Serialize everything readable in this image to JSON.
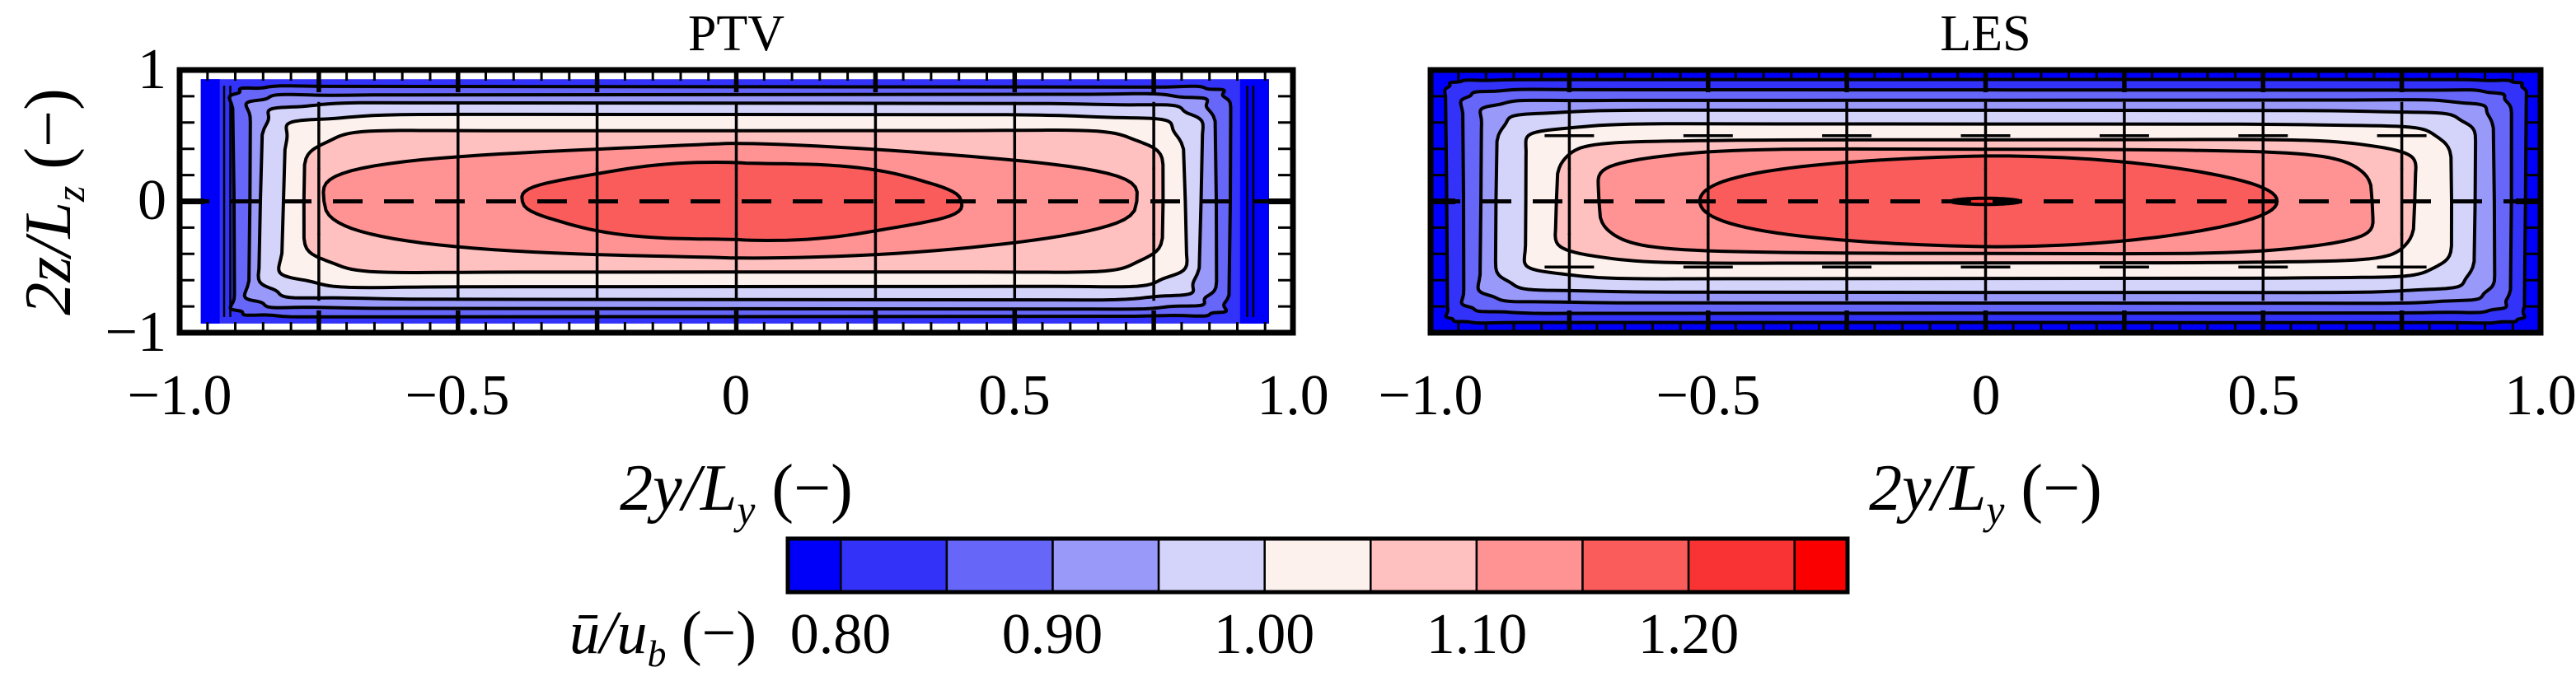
{
  "labels": {
    "xlabel": {
      "pre": "2y/L",
      "sub": "y",
      "post": " (−)"
    },
    "ylabel": {
      "pre": "2z/L",
      "sub": "z",
      "post": " (−)"
    },
    "cbar_label": {
      "pre": "ū/u",
      "sub": "b",
      "post": " (−)"
    }
  },
  "axes": {
    "x_tick_labels": [
      "−1.0",
      "−0.5",
      "0",
      "0.5",
      "1.0"
    ],
    "x_tick_values": [
      -1,
      -0.5,
      0,
      0.5,
      1
    ],
    "y_tick_labels": [
      "1",
      "0",
      "−1"
    ],
    "y_tick_values": [
      1,
      0,
      -1
    ],
    "x_minor_step": 0.05,
    "x_major_step": 0.25,
    "y_minor_step": 0.2
  },
  "colorbar": {
    "tick_labels": [
      "0.80",
      "0.90",
      "1.00",
      "1.10",
      "1.20"
    ],
    "tick_values": [
      0.8,
      0.9,
      1.0,
      1.1,
      1.2
    ],
    "vmin": 0.775,
    "vmax": 1.275,
    "boundaries": [
      0.775,
      0.8,
      0.85,
      0.9,
      0.95,
      1.0,
      1.05,
      1.1,
      1.15,
      1.2,
      1.25,
      1.275
    ],
    "colors": [
      "#0000FA",
      "#3232F8",
      "#6666F8",
      "#9999FA",
      "#D4D4FB",
      "#FDF1EE",
      "#FFC0C0",
      "#FF9393",
      "#FA5C5C",
      "#F93333",
      "#FA0000"
    ]
  },
  "chart_data": [
    {
      "type": "heatmap",
      "subtype": "filled-contour",
      "title": "PTV",
      "xlabel": "2y/Ly (−)",
      "ylabel": "2z/Lz (−)",
      "quantity": "ū/ub (−)",
      "xlim": [
        -1,
        1
      ],
      "ylim": [
        -1,
        1
      ],
      "levels": [
        0.775,
        0.8,
        0.85,
        0.9,
        0.95,
        1.0,
        1.05,
        1.1,
        1.15,
        1.2,
        1.25,
        1.275
      ],
      "grid": "dashed centerline z=0 plus cross markers",
      "center_dashed_line_z": 0,
      "marker_x": [
        -0.75,
        -0.5,
        -0.25,
        0,
        0.25,
        0.5,
        0.75
      ],
      "marker_z": [
        -0.5,
        0,
        0.5
      ],
      "plus_markers": false,
      "full_background": false,
      "data_region": {
        "x": [
          -0.962,
          0.957
        ],
        "z": [
          -0.93,
          0.93
        ]
      },
      "region_color": "#3232F8",
      "edge_strips": [
        {
          "x": [
            -0.962,
            -0.928
          ],
          "color": "#0000FA"
        },
        {
          "x": [
            0.905,
            0.957
          ],
          "color": "#0000FA"
        }
      ],
      "extra_contour_lines_x": [
        -0.92,
        -0.909,
        0.918,
        0.929
      ],
      "peak_value_band": [
        1.15,
        1.2
      ],
      "bands": [
        {
          "level": [
            0.85,
            0.9
          ],
          "color": "#6666F8",
          "a": 0.895,
          "b": 0.875,
          "ex": 0.07,
          "ey": 0.07,
          "cx": -0.012,
          "j": 0.006,
          "k": 11,
          "ph": 1.0
        },
        {
          "level": [
            0.9,
            0.95
          ],
          "color": "#9999FA",
          "a": 0.868,
          "b": 0.815,
          "ex": 0.1,
          "ey": 0.1,
          "cx": -0.012,
          "j": 0.008,
          "k": 9,
          "ph": 2.0
        },
        {
          "level": [
            0.95,
            1.0
          ],
          "color": "#D4D4FB",
          "a": 0.842,
          "b": 0.745,
          "ex": 0.13,
          "ey": 0.13,
          "cx": -0.01,
          "j": 0.009,
          "k": 8,
          "ph": 0.4
        },
        {
          "level": [
            1.0,
            1.05
          ],
          "color": "#FDF1EE",
          "a": 0.81,
          "b": 0.655,
          "ex": 0.17,
          "ey": 0.17,
          "cx": -0.008,
          "j": 0.011,
          "k": 7,
          "ph": 2.6
        },
        {
          "level": [
            1.05,
            1.1
          ],
          "color": "#FFC0C0",
          "a": 0.762,
          "b": 0.545,
          "ex": 0.24,
          "ey": 0.23,
          "cx": -0.005,
          "j": 0.013,
          "k": 6,
          "ph": 1.4
        },
        {
          "level": [
            1.1,
            1.15
          ],
          "color": "#FF9393",
          "a": 0.73,
          "b": 0.435,
          "ex": 1.45,
          "ey": 0.62,
          "cx": -0.02,
          "j": 0.018,
          "k": 5,
          "ph": 0.8
        },
        {
          "level": [
            1.15,
            1.2
          ],
          "color": "#FA5C5C",
          "a": 0.385,
          "b": 0.3,
          "ex": 1.35,
          "ey": 0.75,
          "cx": 0.01,
          "j": 0.03,
          "k": 6,
          "ph": 2.2
        }
      ]
    },
    {
      "type": "heatmap",
      "subtype": "filled-contour",
      "title": "LES",
      "xlabel": "2y/Ly (−)",
      "ylabel": "2z/Lz (−)",
      "quantity": "ū/ub (−)",
      "xlim": [
        -1,
        1
      ],
      "ylim": [
        -1,
        1
      ],
      "levels": [
        0.775,
        0.8,
        0.85,
        0.9,
        0.95,
        1.0,
        1.05,
        1.1,
        1.15,
        1.2,
        1.25,
        1.275
      ],
      "grid": "dashed centerline z=0 plus cross markers",
      "center_dashed_line_z": 0,
      "marker_x": [
        -0.75,
        -0.5,
        -0.25,
        0,
        0.25,
        0.5,
        0.75
      ],
      "marker_z": [
        -0.5,
        0,
        0.5
      ],
      "plus_markers": true,
      "full_background": true,
      "region_color": "#0000FA",
      "peak_value_band": [
        1.2,
        1.25
      ],
      "bands": [
        {
          "level": [
            0.8,
            0.85
          ],
          "color": "#3232F8",
          "a": 0.972,
          "b": 0.925,
          "ex": 0.05,
          "ey": 0.05,
          "j": 0.003,
          "k": 13,
          "ph": 0.3
        },
        {
          "level": [
            0.85,
            0.9
          ],
          "color": "#6666F8",
          "a": 0.944,
          "b": 0.85,
          "ex": 0.08,
          "ey": 0.08,
          "j": 0.004,
          "k": 11,
          "ph": 1.1
        },
        {
          "level": [
            0.9,
            0.95
          ],
          "color": "#9999FA",
          "a": 0.913,
          "b": 0.772,
          "ex": 0.11,
          "ey": 0.11,
          "j": 0.005,
          "k": 9,
          "ph": 2.2
        },
        {
          "level": [
            0.95,
            1.0
          ],
          "color": "#D4D4FB",
          "a": 0.878,
          "b": 0.69,
          "ex": 0.15,
          "ey": 0.14,
          "j": 0.006,
          "k": 8,
          "ph": 0.9
        },
        {
          "level": [
            1.0,
            1.05
          ],
          "color": "#FDF1EE",
          "a": 0.834,
          "b": 0.588,
          "ex": 0.2,
          "ey": 0.19,
          "j": 0.007,
          "k": 7,
          "ph": 1.8
        },
        {
          "level": [
            1.05,
            1.1
          ],
          "color": "#FFC0C0",
          "a": 0.772,
          "b": 0.47,
          "ex": 0.29,
          "ey": 0.27,
          "j": 0.008,
          "k": 6,
          "ph": 0.2
        },
        {
          "level": [
            1.1,
            1.15
          ],
          "color": "#FF9393",
          "a": 0.695,
          "b": 0.398,
          "ex": 0.48,
          "ey": 0.4,
          "j": 0.009,
          "k": 6,
          "ph": 2.9
        },
        {
          "level": [
            1.15,
            1.2
          ],
          "color": "#FA5C5C",
          "a": 0.52,
          "b": 0.345,
          "ex": 1.12,
          "ey": 0.92,
          "j": 0.01,
          "k": 5,
          "ph": 1.5
        },
        {
          "level": [
            1.2,
            1.25
          ],
          "color": "#F93333",
          "a": 0.062,
          "b": 0.024,
          "ex": 1.2,
          "ey": 1.0,
          "j": 0,
          "k": 5,
          "ph": 0
        }
      ]
    }
  ]
}
